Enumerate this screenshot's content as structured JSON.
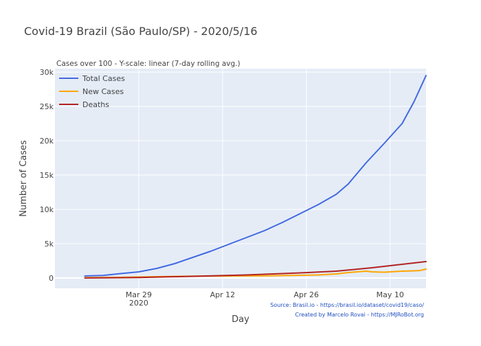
{
  "chart_data": {
    "type": "line",
    "title": "Covid-19 Brazil (São Paulo/SP) - 2020/5/16",
    "subtitle": "Cases over 100 - Y-scale: linear (7-day rolling avg.)",
    "xlabel": "Day",
    "ylabel": "Number of Cases",
    "x_axis": {
      "type": "date",
      "range": [
        "2020-03-15",
        "2020-05-16"
      ],
      "ticks": [
        {
          "date": "2020-03-29",
          "label": "Mar 29",
          "sublabel": "2020"
        },
        {
          "date": "2020-04-12",
          "label": "Apr 12",
          "sublabel": ""
        },
        {
          "date": "2020-04-26",
          "label": "Apr 26",
          "sublabel": ""
        },
        {
          "date": "2020-05-10",
          "label": "May 10",
          "sublabel": ""
        }
      ]
    },
    "y_axis": {
      "range": [
        -1500,
        30500
      ],
      "ticks": [
        {
          "value": 0,
          "label": "0"
        },
        {
          "value": 5000,
          "label": "5k"
        },
        {
          "value": 10000,
          "label": "10k"
        },
        {
          "value": 15000,
          "label": "15k"
        },
        {
          "value": 20000,
          "label": "20k"
        },
        {
          "value": 25000,
          "label": "25k"
        },
        {
          "value": 30000,
          "label": "30k"
        }
      ]
    },
    "grid": true,
    "legend_position": "top-left",
    "background_color": "#e5ecf6",
    "series": [
      {
        "name": "Total Cases",
        "color": "#4169e1",
        "points": [
          {
            "x": "2020-03-20",
            "y": 300
          },
          {
            "x": "2020-03-23",
            "y": 380
          },
          {
            "x": "2020-03-26",
            "y": 650
          },
          {
            "x": "2020-03-29",
            "y": 900
          },
          {
            "x": "2020-04-01",
            "y": 1400
          },
          {
            "x": "2020-04-04",
            "y": 2100
          },
          {
            "x": "2020-04-07",
            "y": 3000
          },
          {
            "x": "2020-04-10",
            "y": 3900
          },
          {
            "x": "2020-04-13",
            "y": 4900
          },
          {
            "x": "2020-04-16",
            "y": 5900
          },
          {
            "x": "2020-04-19",
            "y": 6900
          },
          {
            "x": "2020-04-22",
            "y": 8100
          },
          {
            "x": "2020-04-25",
            "y": 9400
          },
          {
            "x": "2020-04-28",
            "y": 10700
          },
          {
            "x": "2020-05-01",
            "y": 12200
          },
          {
            "x": "2020-05-03",
            "y": 13700
          },
          {
            "x": "2020-05-06",
            "y": 16800
          },
          {
            "x": "2020-05-09",
            "y": 19600
          },
          {
            "x": "2020-05-12",
            "y": 22500
          },
          {
            "x": "2020-05-14",
            "y": 25700
          },
          {
            "x": "2020-05-16",
            "y": 29500
          }
        ]
      },
      {
        "name": "New Cases",
        "color": "#ffa500",
        "points": [
          {
            "x": "2020-03-20",
            "y": 60
          },
          {
            "x": "2020-03-26",
            "y": 100
          },
          {
            "x": "2020-04-01",
            "y": 200
          },
          {
            "x": "2020-04-07",
            "y": 280
          },
          {
            "x": "2020-04-13",
            "y": 300
          },
          {
            "x": "2020-04-19",
            "y": 320
          },
          {
            "x": "2020-04-25",
            "y": 400
          },
          {
            "x": "2020-04-28",
            "y": 450
          },
          {
            "x": "2020-05-01",
            "y": 600
          },
          {
            "x": "2020-05-03",
            "y": 800
          },
          {
            "x": "2020-05-06",
            "y": 1000
          },
          {
            "x": "2020-05-07",
            "y": 900
          },
          {
            "x": "2020-05-09",
            "y": 850
          },
          {
            "x": "2020-05-10",
            "y": 900
          },
          {
            "x": "2020-05-12",
            "y": 1000
          },
          {
            "x": "2020-05-14",
            "y": 1050
          },
          {
            "x": "2020-05-15",
            "y": 1100
          },
          {
            "x": "2020-05-16",
            "y": 1300
          }
        ]
      },
      {
        "name": "Deaths",
        "color": "#b22222",
        "points": [
          {
            "x": "2020-03-20",
            "y": 10
          },
          {
            "x": "2020-03-29",
            "y": 80
          },
          {
            "x": "2020-04-07",
            "y": 250
          },
          {
            "x": "2020-04-16",
            "y": 450
          },
          {
            "x": "2020-04-25",
            "y": 750
          },
          {
            "x": "2020-05-01",
            "y": 1000
          },
          {
            "x": "2020-05-07",
            "y": 1500
          },
          {
            "x": "2020-05-12",
            "y": 2000
          },
          {
            "x": "2020-05-16",
            "y": 2400
          }
        ]
      }
    ],
    "annotations": [
      "Source: Brasil.io - https://brasil.io/dataset/covid19/caso/",
      "Created by Marcelo Rovai - https://MJRoBot.org"
    ]
  }
}
